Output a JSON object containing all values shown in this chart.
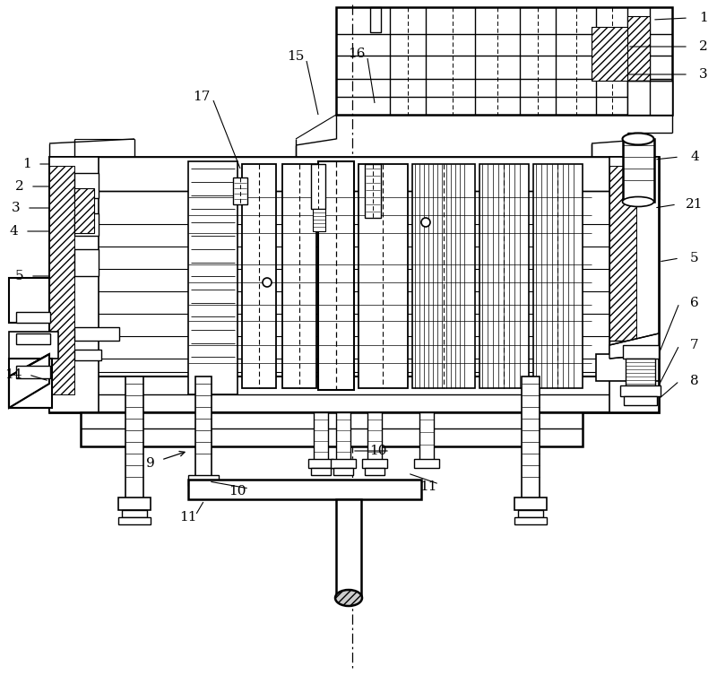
{
  "bg": "#ffffff",
  "lc": "#000000",
  "fw": 8.0,
  "fh": 7.53,
  "dpi": 100,
  "nums_left": [
    "1",
    "2",
    "3",
    "4",
    "5",
    "14"
  ],
  "nums_top": [
    "15",
    "16",
    "17"
  ],
  "nums_right": [
    "1",
    "2",
    "3",
    "4",
    "21",
    "5",
    "6",
    "7",
    "8"
  ],
  "nums_bottom": [
    "9",
    "10",
    "10",
    "11",
    "11"
  ]
}
